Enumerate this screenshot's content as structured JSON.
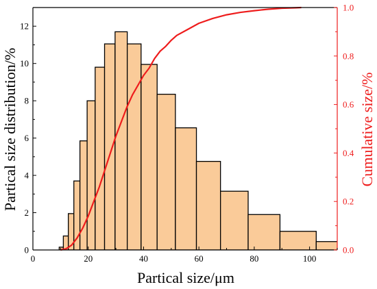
{
  "chart_data": {
    "type": "bar+line",
    "title": "",
    "xlabel": "Partical size/μm",
    "ylabel_left": "Partical size distribution/%",
    "ylabel_right": "Cumulative size/%",
    "xlim": [
      0,
      110
    ],
    "ylim_left": [
      0,
      13
    ],
    "ylim_right": [
      0,
      1.0
    ],
    "x_ticks": [
      "0",
      "20",
      "40",
      "60",
      "80",
      "100"
    ],
    "y_left_ticks": [
      "0",
      "2",
      "4",
      "6",
      "8",
      "10",
      "12"
    ],
    "y_right_ticks": [
      "0.0",
      "0.2",
      "0.4",
      "0.6",
      "0.8",
      "1.0"
    ],
    "grid": false,
    "series": [
      {
        "kind": "bar",
        "axis": "left",
        "bins": [
          {
            "x0": 9.5,
            "x1": 11.0,
            "value": 0.15
          },
          {
            "x0": 11.0,
            "x1": 12.8,
            "value": 0.75
          },
          {
            "x0": 12.8,
            "x1": 14.8,
            "value": 1.95
          },
          {
            "x0": 14.8,
            "x1": 17.0,
            "value": 3.7
          },
          {
            "x0": 17.0,
            "x1": 19.6,
            "value": 5.85
          },
          {
            "x0": 19.6,
            "x1": 22.5,
            "value": 8.0
          },
          {
            "x0": 22.5,
            "x1": 25.9,
            "value": 9.8
          },
          {
            "x0": 25.9,
            "x1": 29.7,
            "value": 11.05
          },
          {
            "x0": 29.7,
            "x1": 34.1,
            "value": 11.7
          },
          {
            "x0": 34.1,
            "x1": 39.1,
            "value": 11.05
          },
          {
            "x0": 39.1,
            "x1": 44.9,
            "value": 9.95
          },
          {
            "x0": 44.9,
            "x1": 51.5,
            "value": 8.35
          },
          {
            "x0": 51.5,
            "x1": 59.1,
            "value": 6.55
          },
          {
            "x0": 59.1,
            "x1": 67.8,
            "value": 4.75
          },
          {
            "x0": 67.8,
            "x1": 77.8,
            "value": 3.15
          },
          {
            "x0": 77.8,
            "x1": 89.3,
            "value": 1.9
          },
          {
            "x0": 89.3,
            "x1": 102.4,
            "value": 1.0
          },
          {
            "x0": 102.4,
            "x1": 117.5,
            "value": 0.45
          }
        ]
      },
      {
        "kind": "line",
        "axis": "right",
        "x": [
          10,
          12,
          14,
          16,
          18,
          20,
          22,
          24,
          26,
          28,
          30,
          32,
          34,
          36,
          38,
          40,
          42,
          44,
          46,
          48,
          50,
          52,
          56,
          60,
          65,
          70,
          75,
          80,
          85,
          90,
          95,
          97
        ],
        "y": [
          0.0,
          0.005,
          0.02,
          0.05,
          0.09,
          0.14,
          0.2,
          0.26,
          0.33,
          0.4,
          0.47,
          0.53,
          0.59,
          0.64,
          0.68,
          0.72,
          0.75,
          0.79,
          0.82,
          0.84,
          0.865,
          0.885,
          0.91,
          0.935,
          0.955,
          0.97,
          0.98,
          0.987,
          0.993,
          0.997,
          0.999,
          1.0
        ]
      }
    ],
    "colors": {
      "bar_fill": "#FACB99",
      "bar_stroke": "#000000",
      "line": "#EE1C1C",
      "right_axis": "#EE1C1C",
      "axis": "#000000"
    }
  }
}
